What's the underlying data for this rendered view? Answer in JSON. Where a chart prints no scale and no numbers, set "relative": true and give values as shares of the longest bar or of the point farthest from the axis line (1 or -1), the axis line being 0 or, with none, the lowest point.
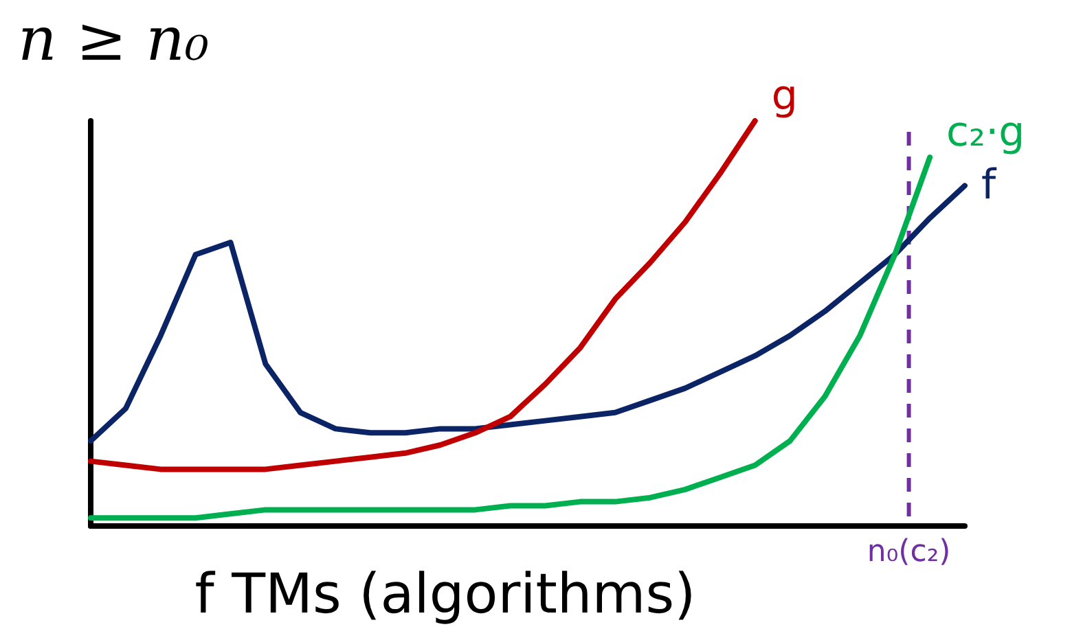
{
  "chart_data": {
    "type": "line",
    "relative": true,
    "title": "n ≥ n₀",
    "xlabel": "f TMs (algorithms)",
    "grid": false,
    "legend": false,
    "marker": "none",
    "line_style": "solid",
    "categories": [
      null,
      null,
      null,
      null,
      null,
      null,
      null,
      null,
      null,
      null,
      null,
      null,
      null,
      null,
      null,
      null,
      null,
      null,
      null,
      null,
      null,
      null,
      null,
      null,
      null,
      null
    ],
    "series": [
      {
        "name": "f",
        "color": "#0b2466",
        "values": [
          0.21,
          0.29,
          0.47,
          0.67,
          0.7,
          0.4,
          0.28,
          0.24,
          0.23,
          0.23,
          0.24,
          0.24,
          0.25,
          0.26,
          0.27,
          0.28,
          0.31,
          0.34,
          0.38,
          0.42,
          0.47,
          0.53,
          0.6,
          0.67,
          0.76,
          0.84
        ]
      },
      {
        "name": "g",
        "color": "#c00000",
        "values": [
          0.16,
          0.15,
          0.14,
          0.14,
          0.14,
          0.14,
          0.15,
          0.16,
          0.17,
          0.18,
          0.2,
          0.23,
          0.27,
          0.35,
          0.44,
          0.56,
          0.65,
          0.75,
          0.87,
          1,
          null,
          null,
          null,
          null,
          null,
          null
        ]
      },
      {
        "name": "c₂·g",
        "color": "#00b050",
        "values": [
          0.02,
          0.02,
          0.02,
          0.02,
          0.03,
          0.04,
          0.04,
          0.04,
          0.04,
          0.04,
          0.04,
          0.04,
          0.05,
          0.05,
          0.06,
          0.06,
          0.07,
          0.09,
          0.12,
          0.15,
          0.21,
          0.32,
          0.47,
          0.67,
          0.91,
          null
        ]
      }
    ],
    "annotations": [
      "n₀(c₂)"
    ]
  }
}
